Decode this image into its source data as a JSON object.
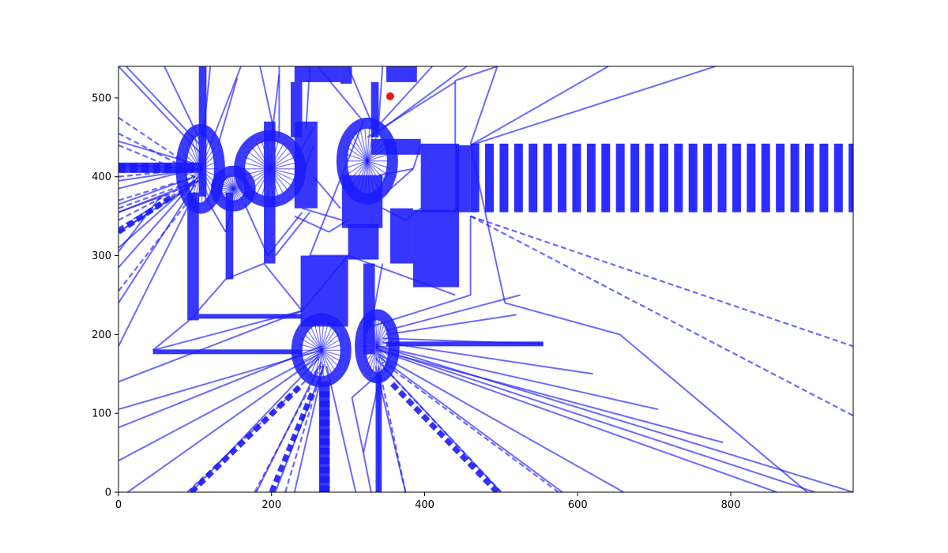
{
  "chart_data": {
    "type": "scatter",
    "title": "",
    "xlabel": "",
    "ylabel": "",
    "xlim": [
      0,
      960
    ],
    "ylim": [
      0,
      540
    ],
    "xticks": [
      0,
      200,
      400,
      600,
      800
    ],
    "yticks": [
      0,
      100,
      200,
      300,
      400,
      500
    ],
    "xtick_labels": [
      "0",
      "200",
      "400",
      "600",
      "800"
    ],
    "ytick_labels": [
      "0",
      "100",
      "200",
      "300",
      "400",
      "500"
    ],
    "grid": false,
    "legend": "none",
    "colors": {
      "edges": "#1a1aff",
      "marker": "#e31a1c",
      "axes": "#000000",
      "background": "#ffffff"
    },
    "marker_point": {
      "x": 355,
      "y": 502
    },
    "dense_blocks": [
      {
        "x0": 0,
        "x1": 110,
        "y0": 405,
        "y1": 418
      },
      {
        "x0": 105,
        "x1": 115,
        "y0": 375,
        "y1": 540
      },
      {
        "x0": 90,
        "x1": 105,
        "y0": 218,
        "y1": 380
      },
      {
        "x0": 140,
        "x1": 150,
        "y0": 270,
        "y1": 380
      },
      {
        "x0": 190,
        "x1": 205,
        "y0": 290,
        "y1": 470
      },
      {
        "x0": 230,
        "x1": 260,
        "y0": 360,
        "y1": 470
      },
      {
        "x0": 225,
        "x1": 240,
        "y0": 450,
        "y1": 520
      },
      {
        "x0": 230,
        "x1": 290,
        "y0": 520,
        "y1": 540
      },
      {
        "x0": 290,
        "x1": 305,
        "y0": 518,
        "y1": 540
      },
      {
        "x0": 330,
        "x1": 340,
        "y0": 450,
        "y1": 520
      },
      {
        "x0": 350,
        "x1": 390,
        "y0": 520,
        "y1": 540
      },
      {
        "x0": 330,
        "x1": 395,
        "y0": 428,
        "y1": 448
      },
      {
        "x0": 395,
        "x1": 445,
        "y0": 355,
        "y1": 442
      },
      {
        "x0": 440,
        "x1": 460,
        "y0": 355,
        "y1": 440
      },
      {
        "x0": 292,
        "x1": 345,
        "y0": 335,
        "y1": 402
      },
      {
        "x0": 300,
        "x1": 340,
        "y0": 295,
        "y1": 340
      },
      {
        "x0": 355,
        "x1": 385,
        "y0": 290,
        "y1": 360
      },
      {
        "x0": 385,
        "x1": 445,
        "y0": 260,
        "y1": 358
      },
      {
        "x0": 238,
        "x1": 300,
        "y0": 210,
        "y1": 300
      },
      {
        "x0": 320,
        "x1": 335,
        "y0": 175,
        "y1": 290
      },
      {
        "x0": 105,
        "x1": 240,
        "y0": 220,
        "y1": 226
      },
      {
        "x0": 45,
        "x1": 240,
        "y0": 175,
        "y1": 181
      },
      {
        "x0": 350,
        "x1": 555,
        "y0": 185,
        "y1": 191
      },
      {
        "x0": 262,
        "x1": 276,
        "y0": 0,
        "y1": 140
      },
      {
        "x0": 336,
        "x1": 344,
        "y0": 0,
        "y1": 150
      }
    ],
    "blobs": [
      {
        "cx": 107,
        "cy": 410,
        "rx": 25,
        "ry": 50
      },
      {
        "cx": 150,
        "cy": 385,
        "rx": 22,
        "ry": 22
      },
      {
        "cx": 198,
        "cy": 410,
        "rx": 40,
        "ry": 42
      },
      {
        "cx": 325,
        "cy": 420,
        "rx": 33,
        "ry": 48
      },
      {
        "cx": 265,
        "cy": 180,
        "rx": 32,
        "ry": 40
      },
      {
        "cx": 338,
        "cy": 185,
        "rx": 22,
        "ry": 40
      }
    ],
    "voronoi_edges": [
      [
        [
          0,
          415
        ],
        [
          107,
          410
        ]
      ],
      [
        [
          0,
          395
        ],
        [
          107,
          410
        ]
      ],
      [
        [
          0,
          385
        ],
        [
          100,
          410
        ]
      ],
      [
        [
          0,
          445
        ],
        [
          105,
          415
        ]
      ],
      [
        [
          0,
          365
        ],
        [
          100,
          400
        ]
      ],
      [
        [
          0,
          330
        ],
        [
          105,
          395
        ]
      ],
      [
        [
          0,
          310
        ],
        [
          105,
          400
        ]
      ],
      [
        [
          0,
          285
        ],
        [
          100,
          395
        ]
      ],
      [
        [
          0,
          240
        ],
        [
          100,
          390
        ]
      ],
      [
        [
          0,
          185
        ],
        [
          100,
          380
        ]
      ],
      [
        [
          0,
          140
        ],
        [
          240,
          230
        ]
      ],
      [
        [
          0,
          105
        ],
        [
          265,
          180
        ]
      ],
      [
        [
          0,
          82
        ],
        [
          265,
          185
        ]
      ],
      [
        [
          0,
          40
        ],
        [
          262,
          175
        ]
      ],
      [
        [
          12,
          0
        ],
        [
          262,
          172
        ]
      ],
      [
        [
          95,
          0
        ],
        [
          262,
          170
        ]
      ],
      [
        [
          180,
          0
        ],
        [
          265,
          165
        ]
      ],
      [
        [
          205,
          0
        ],
        [
          268,
          160
        ]
      ],
      [
        [
          230,
          0
        ],
        [
          268,
          160
        ]
      ],
      [
        [
          310,
          0
        ],
        [
          272,
          160
        ]
      ],
      [
        [
          340,
          0
        ],
        [
          340,
          160
        ]
      ],
      [
        [
          375,
          0
        ],
        [
          336,
          160
        ]
      ],
      [
        [
          500,
          0
        ],
        [
          336,
          170
        ]
      ],
      [
        [
          580,
          0
        ],
        [
          340,
          172
        ]
      ],
      [
        [
          660,
          0
        ],
        [
          340,
          175
        ]
      ],
      [
        [
          860,
          0
        ],
        [
          340,
          180
        ]
      ],
      [
        [
          910,
          0
        ],
        [
          340,
          182
        ]
      ],
      [
        [
          960,
          0
        ],
        [
          340,
          185
        ]
      ],
      [
        [
          790,
          63
        ],
        [
          340,
          180
        ]
      ],
      [
        [
          705,
          105
        ],
        [
          340,
          185
        ]
      ],
      [
        [
          620,
          150
        ],
        [
          345,
          190
        ]
      ],
      [
        [
          555,
          188
        ],
        [
          345,
          195
        ]
      ],
      [
        [
          520,
          225
        ],
        [
          350,
          200
        ]
      ],
      [
        [
          525,
          250
        ],
        [
          350,
          205
        ]
      ],
      [
        [
          0,
          540
        ],
        [
          107,
          430
        ]
      ],
      [
        [
          10,
          540
        ],
        [
          107,
          440
        ]
      ],
      [
        [
          60,
          540
        ],
        [
          107,
          445
        ]
      ],
      [
        [
          120,
          540
        ],
        [
          110,
          445
        ]
      ],
      [
        [
          160,
          540
        ],
        [
          120,
          440
        ]
      ],
      [
        [
          155,
          525
        ],
        [
          130,
          440
        ]
      ],
      [
        [
          185,
          540
        ],
        [
          205,
          450
        ]
      ],
      [
        [
          210,
          540
        ],
        [
          210,
          450
        ]
      ],
      [
        [
          210,
          530
        ],
        [
          200,
          450
        ]
      ],
      [
        [
          250,
          540
        ],
        [
          245,
          460
        ]
      ],
      [
        [
          260,
          540
        ],
        [
          320,
          470
        ]
      ],
      [
        [
          300,
          540
        ],
        [
          330,
          470
        ]
      ],
      [
        [
          345,
          540
        ],
        [
          340,
          470
        ]
      ],
      [
        [
          410,
          540
        ],
        [
          335,
          460
        ]
      ],
      [
        [
          440,
          520
        ],
        [
          325,
          450
        ]
      ],
      [
        [
          455,
          540
        ],
        [
          330,
          450
        ]
      ],
      [
        [
          495,
          540
        ],
        [
          460,
          442
        ]
      ],
      [
        [
          640,
          540
        ],
        [
          460,
          440
        ]
      ],
      [
        [
          780,
          540
        ],
        [
          460,
          440
        ]
      ],
      [
        [
          495,
          540
        ],
        [
          440,
          522
        ]
      ],
      [
        [
          440,
          522
        ],
        [
          440,
          440
        ]
      ],
      [
        [
          460,
          440
        ],
        [
          505,
          240
        ]
      ],
      [
        [
          505,
          240
        ],
        [
          655,
          200
        ]
      ],
      [
        [
          655,
          200
        ],
        [
          900,
          0
        ]
      ],
      [
        [
          460,
          350
        ],
        [
          460,
          250
        ]
      ],
      [
        [
          300,
          300
        ],
        [
          440,
          250
        ]
      ],
      [
        [
          240,
          230
        ],
        [
          300,
          300
        ]
      ],
      [
        [
          190,
          290
        ],
        [
          240,
          230
        ]
      ],
      [
        [
          140,
          270
        ],
        [
          190,
          290
        ]
      ],
      [
        [
          95,
          220
        ],
        [
          140,
          270
        ]
      ],
      [
        [
          45,
          180
        ],
        [
          95,
          220
        ]
      ],
      [
        [
          45,
          180
        ],
        [
          240,
          230
        ]
      ],
      [
        [
          330,
          210
        ],
        [
          460,
          250
        ]
      ],
      [
        [
          330,
          210
        ],
        [
          345,
          290
        ]
      ],
      [
        [
          250,
          300
        ],
        [
          300,
          300
        ]
      ],
      [
        [
          250,
          300
        ],
        [
          320,
          470
        ]
      ],
      [
        [
          275,
          330
        ],
        [
          300,
          345
        ]
      ],
      [
        [
          230,
          350
        ],
        [
          275,
          330
        ]
      ],
      [
        [
          240,
          360
        ],
        [
          292,
          345
        ]
      ],
      [
        [
          305,
          120
        ],
        [
          320,
          50
        ]
      ],
      [
        [
          305,
          120
        ],
        [
          340,
          150
        ]
      ],
      [
        [
          320,
          50
        ],
        [
          340,
          140
        ]
      ],
      [
        [
          320,
          50
        ],
        [
          330,
          0
        ]
      ],
      [
        [
          0,
          355
        ],
        [
          105,
          395
        ]
      ],
      [
        [
          0,
          355
        ],
        [
          65,
          378
        ]
      ],
      [
        [
          0,
          305
        ],
        [
          55,
          375
        ]
      ],
      [
        [
          110,
          380
        ],
        [
          140,
          330
        ]
      ],
      [
        [
          150,
          365
        ],
        [
          140,
          330
        ]
      ],
      [
        [
          165,
          365
        ],
        [
          195,
          300
        ]
      ],
      [
        [
          195,
          300
        ],
        [
          240,
          355
        ]
      ],
      [
        [
          205,
          300
        ],
        [
          250,
          355
        ]
      ],
      [
        [
          230,
          420
        ],
        [
          255,
          462
        ]
      ],
      [
        [
          240,
          400
        ],
        [
          255,
          440
        ]
      ],
      [
        [
          290,
          360
        ],
        [
          255,
          400
        ]
      ],
      [
        [
          340,
          402
        ],
        [
          385,
          410
        ]
      ],
      [
        [
          385,
          410
        ],
        [
          395,
          440
        ]
      ],
      [
        [
          350,
          380
        ],
        [
          385,
          410
        ]
      ],
      [
        [
          345,
          360
        ],
        [
          375,
          345
        ]
      ],
      [
        [
          375,
          345
        ],
        [
          395,
          360
        ]
      ]
    ],
    "dashed_edges": [
      [
        [
          0,
          475
        ],
        [
          100,
          410
        ]
      ],
      [
        [
          0,
          455
        ],
        [
          100,
          405
        ]
      ],
      [
        [
          0,
          440
        ],
        [
          100,
          400
        ]
      ],
      [
        [
          0,
          400
        ],
        [
          100,
          410
        ]
      ],
      [
        [
          0,
          370
        ],
        [
          100,
          400
        ]
      ],
      [
        [
          0,
          360
        ],
        [
          100,
          395
        ]
      ],
      [
        [
          0,
          345
        ],
        [
          100,
          395
        ]
      ],
      [
        [
          0,
          335
        ],
        [
          95,
          390
        ]
      ],
      [
        [
          460,
          350
        ],
        [
          960,
          185
        ]
      ],
      [
        [
          460,
          350
        ],
        [
          960,
          97
        ]
      ],
      [
        [
          90,
          0
        ],
        [
          265,
          160
        ]
      ],
      [
        [
          178,
          0
        ],
        [
          265,
          160
        ]
      ],
      [
        [
          218,
          0
        ],
        [
          268,
          162
        ]
      ],
      [
        [
          375,
          0
        ],
        [
          340,
          160
        ]
      ],
      [
        [
          500,
          0
        ],
        [
          345,
          160
        ]
      ],
      [
        [
          575,
          0
        ],
        [
          345,
          165
        ]
      ],
      [
        [
          0,
          255
        ],
        [
          100,
          380
        ]
      ],
      [
        [
          0,
          330
        ],
        [
          100,
          390
        ]
      ]
    ],
    "hatched_bands": [
      {
        "x0": 460,
        "x1": 960,
        "y0": 355,
        "y1": 442,
        "orient": "v",
        "step": 19,
        "width": 11
      },
      {
        "x0": 0,
        "x1": 100,
        "y0": 405,
        "y1": 417,
        "orient": "v",
        "step": 15,
        "width": 9
      },
      {
        "x0": 263,
        "x1": 276,
        "y0": 0,
        "y1": 130,
        "orient": "h",
        "step": 12,
        "width": 8
      }
    ],
    "dashed_thick": [
      [
        [
          95,
          0
        ],
        [
          238,
          135
        ]
      ],
      [
        [
          200,
          0
        ],
        [
          255,
          130
        ]
      ],
      [
        [
          495,
          0
        ],
        [
          355,
          140
        ]
      ],
      [
        [
          0,
          330
        ],
        [
          70,
          375
        ]
      ]
    ]
  }
}
